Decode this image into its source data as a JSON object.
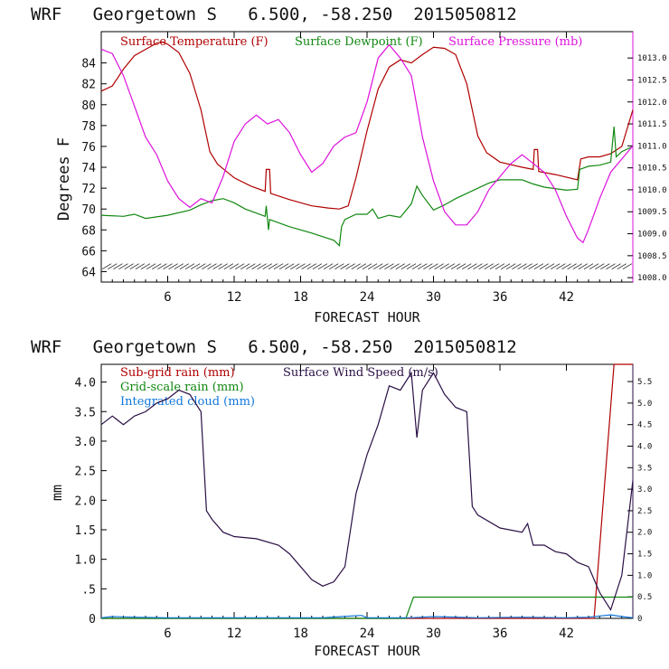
{
  "colors": {
    "temperature": "#b00000",
    "dewpoint": "#118811",
    "pressure": "#dd11dd",
    "subgrid_rain": "#b00000",
    "grid_rain": "#118811",
    "cloud": "#1177dd",
    "wind": "#2a0f45"
  },
  "chart_data": [
    {
      "type": "line",
      "title": "WRF   Georgetown S   6.500, -58.250  2015050812",
      "xlabel": "FORECAST HOUR",
      "ylabel": "Degrees F",
      "xlim": [
        0,
        48
      ],
      "ylim": [
        63,
        87
      ],
      "y2lim": [
        1007.9,
        1013.6
      ],
      "x_ticks": [
        6,
        12,
        18,
        24,
        30,
        36,
        42
      ],
      "y_ticks": [
        64,
        66,
        68,
        70,
        72,
        74,
        76,
        78,
        80,
        82,
        84
      ],
      "y2_ticks": [
        "1008.0",
        "1008.5",
        "1009.0",
        "1009.5",
        "1010.0",
        "1010.5",
        "1011.0",
        "1011.5",
        "1012.0",
        "1012.5",
        "1013.0"
      ],
      "series": [
        {
          "name": "Surface Temperature (F)",
          "axis": "left",
          "points": [
            [
              0,
              81.3
            ],
            [
              1,
              81.8
            ],
            [
              2,
              83.4
            ],
            [
              3,
              84.7
            ],
            [
              4,
              85.3
            ],
            [
              5,
              85.9
            ],
            [
              5.5,
              86.0
            ],
            [
              6,
              85.8
            ],
            [
              7,
              85.0
            ],
            [
              8,
              83.0
            ],
            [
              9,
              79.5
            ],
            [
              9.8,
              75.5
            ],
            [
              10.5,
              74.3
            ],
            [
              12,
              73.0
            ],
            [
              13.5,
              72.2
            ],
            [
              14.8,
              71.7
            ],
            [
              14.9,
              73.8
            ],
            [
              15.2,
              73.8
            ],
            [
              15.3,
              71.5
            ],
            [
              17,
              70.9
            ],
            [
              19,
              70.3
            ],
            [
              20.5,
              70.1
            ],
            [
              21.5,
              70.0
            ],
            [
              22.3,
              70.3
            ],
            [
              23,
              73.0
            ],
            [
              24,
              77.5
            ],
            [
              25,
              81.5
            ],
            [
              26,
              83.6
            ],
            [
              27,
              84.3
            ],
            [
              28,
              84.0
            ],
            [
              29,
              84.8
            ],
            [
              30,
              85.5
            ],
            [
              31,
              85.4
            ],
            [
              32,
              84.8
            ],
            [
              33,
              82.0
            ],
            [
              34,
              77.0
            ],
            [
              34.8,
              75.4
            ],
            [
              36,
              74.5
            ],
            [
              38,
              74.0
            ],
            [
              39,
              73.8
            ],
            [
              39.1,
              75.7
            ],
            [
              39.4,
              75.7
            ],
            [
              39.5,
              73.6
            ],
            [
              41,
              73.3
            ],
            [
              43,
              72.8
            ],
            [
              43.3,
              74.8
            ],
            [
              44,
              75.0
            ],
            [
              45,
              75.0
            ],
            [
              46,
              75.3
            ],
            [
              47,
              76.0
            ],
            [
              48,
              79.5
            ]
          ]
        },
        {
          "name": "Surface Dewpoint (F)",
          "axis": "left",
          "points": [
            [
              0,
              69.4
            ],
            [
              2,
              69.3
            ],
            [
              3,
              69.5
            ],
            [
              4,
              69.1
            ],
            [
              6,
              69.4
            ],
            [
              8,
              69.9
            ],
            [
              9,
              70.4
            ],
            [
              10,
              70.8
            ],
            [
              11,
              71.0
            ],
            [
              12,
              70.6
            ],
            [
              13,
              70.0
            ],
            [
              14.8,
              69.3
            ],
            [
              14.9,
              70.3
            ],
            [
              15.1,
              68.0
            ],
            [
              15.2,
              69.0
            ],
            [
              17,
              68.3
            ],
            [
              19,
              67.7
            ],
            [
              21,
              67.0
            ],
            [
              21.5,
              66.5
            ],
            [
              21.7,
              68.3
            ],
            [
              22,
              69.0
            ],
            [
              23,
              69.5
            ],
            [
              24,
              69.5
            ],
            [
              24.5,
              70.0
            ],
            [
              25,
              69.1
            ],
            [
              26,
              69.4
            ],
            [
              27,
              69.2
            ],
            [
              28,
              70.5
            ],
            [
              28.5,
              72.2
            ],
            [
              29,
              71.3
            ],
            [
              30,
              69.9
            ],
            [
              31,
              70.4
            ],
            [
              32,
              71.0
            ],
            [
              33,
              71.5
            ],
            [
              35,
              72.5
            ],
            [
              36,
              72.8
            ],
            [
              38,
              72.8
            ],
            [
              39,
              72.4
            ],
            [
              40,
              72.1
            ],
            [
              42,
              71.8
            ],
            [
              43,
              71.9
            ],
            [
              43.2,
              73.8
            ],
            [
              44,
              74.1
            ],
            [
              45,
              74.2
            ],
            [
              46,
              74.5
            ],
            [
              46.3,
              77.9
            ],
            [
              46.5,
              75.0
            ],
            [
              47,
              75.5
            ],
            [
              48,
              76.0
            ]
          ]
        },
        {
          "name": "Surface Pressure (mb)",
          "axis": "right",
          "points": [
            [
              0,
              1013.2
            ],
            [
              1,
              1013.1
            ],
            [
              2,
              1012.6
            ],
            [
              3,
              1011.9
            ],
            [
              4,
              1011.2
            ],
            [
              5,
              1010.8
            ],
            [
              6,
              1010.2
            ],
            [
              7,
              1009.8
            ],
            [
              8,
              1009.6
            ],
            [
              9,
              1009.8
            ],
            [
              10,
              1009.7
            ],
            [
              11,
              1010.3
            ],
            [
              12,
              1011.1
            ],
            [
              13,
              1011.5
            ],
            [
              14,
              1011.7
            ],
            [
              15,
              1011.5
            ],
            [
              16,
              1011.6
            ],
            [
              17,
              1011.3
            ],
            [
              18,
              1010.8
            ],
            [
              19,
              1010.4
            ],
            [
              20,
              1010.6
            ],
            [
              21,
              1011.0
            ],
            [
              22,
              1011.2
            ],
            [
              23,
              1011.3
            ],
            [
              24,
              1012.0
            ],
            [
              25,
              1013.0
            ],
            [
              26,
              1013.3
            ],
            [
              27,
              1013.0
            ],
            [
              28,
              1012.6
            ],
            [
              29,
              1011.2
            ],
            [
              30,
              1010.2
            ],
            [
              31,
              1009.5
            ],
            [
              32,
              1009.2
            ],
            [
              33,
              1009.2
            ],
            [
              34,
              1009.5
            ],
            [
              35,
              1010.0
            ],
            [
              36,
              1010.3
            ],
            [
              37,
              1010.6
            ],
            [
              38,
              1010.8
            ],
            [
              39,
              1010.6
            ],
            [
              40,
              1010.4
            ],
            [
              41,
              1010.0
            ],
            [
              42,
              1009.4
            ],
            [
              43,
              1008.9
            ],
            [
              43.5,
              1008.8
            ],
            [
              44,
              1009.1
            ],
            [
              45,
              1009.8
            ],
            [
              46,
              1010.4
            ],
            [
              47,
              1010.7
            ],
            [
              48,
              1011.0
            ]
          ]
        }
      ],
      "wind_barbs": {
        "y": 64.5
      }
    },
    {
      "type": "line",
      "title": "WRF   Georgetown S   6.500, -58.250  2015050812",
      "xlabel": "FORECAST HOUR",
      "ylabel": "mm",
      "xlim": [
        0,
        48
      ],
      "ylim": [
        0,
        4.3
      ],
      "y2lim": [
        0,
        5.9
      ],
      "x_ticks": [
        6,
        12,
        18,
        24,
        30,
        36,
        42
      ],
      "y_ticks": [
        "0",
        ".5",
        "1.0",
        "1.5",
        "2.0",
        "2.5",
        "3.0",
        "3.5",
        "4.0"
      ],
      "y2_ticks": [
        "0",
        "0.5",
        "1.0",
        "1.5",
        "2.0",
        "2.5",
        "3.0",
        "3.5",
        "4.0",
        "4.5",
        "5.0",
        "5.5"
      ],
      "series": [
        {
          "name": "Sub-grid rain (mm)",
          "axis": "left",
          "points": [
            [
              0,
              0
            ],
            [
              44.5,
              0
            ],
            [
              46.3,
              4.3
            ],
            [
              48,
              4.3
            ]
          ]
        },
        {
          "name": "Grid-scale rain (mm)",
          "axis": "left",
          "points": [
            [
              0,
              0
            ],
            [
              27.5,
              0
            ],
            [
              28.2,
              0.36
            ],
            [
              48,
              0.36
            ]
          ]
        },
        {
          "name": "Integrated cloud (mm)",
          "axis": "left",
          "points": [
            [
              0,
              0.01
            ],
            [
              1,
              0.03
            ],
            [
              3,
              0.02
            ],
            [
              6,
              0.01
            ],
            [
              12,
              0.01
            ],
            [
              20,
              0.01
            ],
            [
              23.5,
              0.05
            ],
            [
              24,
              0.01
            ],
            [
              28,
              0.01
            ],
            [
              30,
              0.03
            ],
            [
              34,
              0.01
            ],
            [
              38,
              0.02
            ],
            [
              42,
              0.01
            ],
            [
              44,
              0.02
            ],
            [
              46,
              0.06
            ],
            [
              47,
              0.03
            ],
            [
              48,
              0.01
            ]
          ]
        },
        {
          "name": "Surface Wind Speed (m/s)",
          "axis": "right",
          "points": [
            [
              0,
              4.5
            ],
            [
              1,
              4.7
            ],
            [
              2,
              4.5
            ],
            [
              3,
              4.7
            ],
            [
              4,
              4.8
            ],
            [
              5,
              5.0
            ],
            [
              6,
              5.1
            ],
            [
              7,
              5.3
            ],
            [
              8,
              5.2
            ],
            [
              9,
              4.8
            ],
            [
              9.5,
              2.5
            ],
            [
              10,
              2.3
            ],
            [
              11,
              2.0
            ],
            [
              12,
              1.9
            ],
            [
              14,
              1.85
            ],
            [
              16,
              1.7
            ],
            [
              17,
              1.5
            ],
            [
              18,
              1.2
            ],
            [
              19,
              0.9
            ],
            [
              20,
              0.75
            ],
            [
              21,
              0.85
            ],
            [
              22,
              1.2
            ],
            [
              23,
              2.9
            ],
            [
              24,
              3.8
            ],
            [
              25,
              4.5
            ],
            [
              26,
              5.4
            ],
            [
              27,
              5.3
            ],
            [
              28,
              5.7
            ],
            [
              28.5,
              4.2
            ],
            [
              29,
              5.3
            ],
            [
              30,
              5.7
            ],
            [
              31,
              5.2
            ],
            [
              32,
              4.9
            ],
            [
              33,
              4.8
            ],
            [
              33.5,
              2.6
            ],
            [
              34,
              2.4
            ],
            [
              36,
              2.1
            ],
            [
              38,
              2.0
            ],
            [
              38.5,
              2.2
            ],
            [
              39,
              1.7
            ],
            [
              40,
              1.7
            ],
            [
              41,
              1.55
            ],
            [
              42,
              1.5
            ],
            [
              43,
              1.3
            ],
            [
              44,
              1.2
            ],
            [
              45,
              0.6
            ],
            [
              46,
              0.2
            ],
            [
              47,
              1.0
            ],
            [
              48,
              3.2
            ]
          ]
        }
      ]
    }
  ]
}
